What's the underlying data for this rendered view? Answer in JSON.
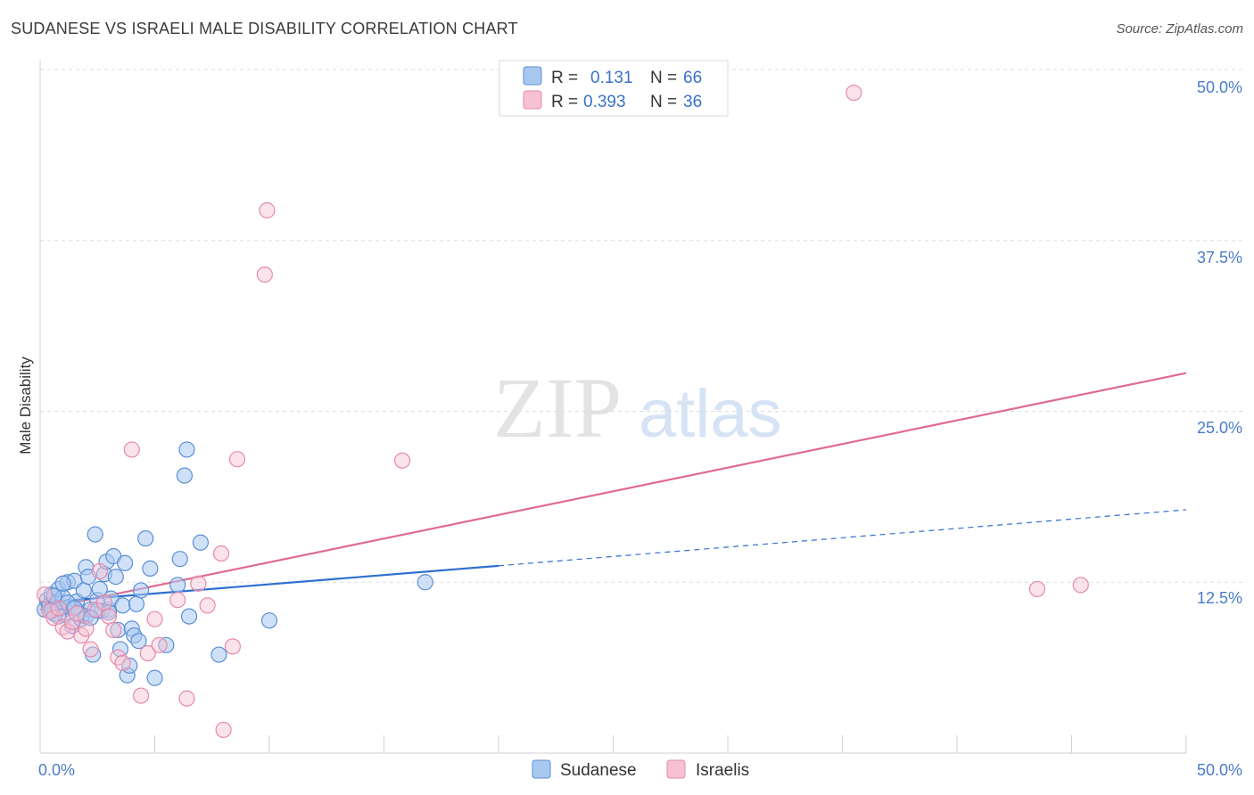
{
  "header": {
    "title": "SUDANESE VS ISRAELI MALE DISABILITY CORRELATION CHART",
    "source": "Source: ZipAtlas.com"
  },
  "watermark": {
    "zip": "ZIP",
    "atlas": "atlas"
  },
  "colors": {
    "sudanese_fill": "#a9c8f0",
    "sudanese_stroke": "#5b8fd6",
    "sudanese_line": "#2f6fcf",
    "israeli_fill": "#f7c1d2",
    "israeli_stroke": "#e58aa8",
    "israeli_line": "#e06a93",
    "tick_text": "#4a7cc9",
    "grid": "#dcdcdc"
  },
  "legend_top": {
    "rows": [
      {
        "series": "Sudanese",
        "r_label": "R =",
        "r_value": "0.131",
        "n_label": "N =",
        "n_value": "66"
      },
      {
        "series": "Israelis",
        "r_label": "R =",
        "r_value": "0.393",
        "n_label": "N =",
        "n_value": "36"
      }
    ]
  },
  "legend_bottom": {
    "items": [
      "Sudanese",
      "Israelis"
    ]
  },
  "chart_data": {
    "type": "scatter",
    "title": "SUDANESE VS ISRAELI MALE DISABILITY CORRELATION CHART",
    "xlabel": "",
    "ylabel": "Male Disability",
    "xlim": [
      0,
      50
    ],
    "ylim": [
      0,
      50
    ],
    "x_tick_labels": [
      "0.0%",
      "50.0%"
    ],
    "y_ticks": [
      12.5,
      25.0,
      37.5,
      50.0
    ],
    "y_tick_labels": [
      "12.5%",
      "25.0%",
      "37.5%",
      "50.0%"
    ],
    "series": [
      {
        "name": "Sudanese",
        "r": 0.131,
        "n": 66,
        "trend": {
          "x0": 0,
          "y0": 11.0,
          "x1": 20,
          "y1": 13.7,
          "dashed_to_x": 50,
          "dashed_to_y": 17.8
        },
        "points": [
          [
            0.2,
            10.5
          ],
          [
            0.3,
            11.2
          ],
          [
            0.4,
            10.8
          ],
          [
            0.5,
            11.6
          ],
          [
            0.6,
            10.2
          ],
          [
            0.7,
            11.0
          ],
          [
            0.8,
            12.0
          ],
          [
            0.9,
            10.6
          ],
          [
            1.0,
            11.4
          ],
          [
            1.1,
            10.1
          ],
          [
            1.2,
            12.5
          ],
          [
            1.3,
            10.7
          ],
          [
            1.4,
            9.3
          ],
          [
            1.5,
            12.6
          ],
          [
            1.6,
            11.1
          ],
          [
            1.7,
            10.3
          ],
          [
            1.8,
            9.8
          ],
          [
            1.9,
            11.9
          ],
          [
            2.0,
            13.6
          ],
          [
            2.1,
            12.9
          ],
          [
            2.2,
            10.5
          ],
          [
            2.3,
            7.2
          ],
          [
            2.4,
            16.0
          ],
          [
            2.5,
            11.2
          ],
          [
            2.6,
            12.0
          ],
          [
            2.7,
            10.4
          ],
          [
            2.8,
            13.1
          ],
          [
            2.9,
            14.0
          ],
          [
            3.0,
            10.5
          ],
          [
            3.1,
            11.3
          ],
          [
            3.2,
            14.4
          ],
          [
            3.3,
            12.9
          ],
          [
            3.4,
            9.0
          ],
          [
            3.5,
            7.6
          ],
          [
            3.6,
            10.8
          ],
          [
            3.7,
            13.9
          ],
          [
            3.8,
            5.7
          ],
          [
            3.9,
            6.4
          ],
          [
            4.0,
            9.1
          ],
          [
            4.1,
            8.6
          ],
          [
            4.2,
            10.9
          ],
          [
            4.3,
            8.2
          ],
          [
            4.4,
            11.9
          ],
          [
            4.6,
            15.7
          ],
          [
            4.8,
            13.5
          ],
          [
            5.0,
            5.5
          ],
          [
            5.5,
            7.9
          ],
          [
            6.0,
            12.3
          ],
          [
            6.1,
            14.2
          ],
          [
            6.3,
            20.3
          ],
          [
            6.4,
            22.2
          ],
          [
            6.5,
            10.0
          ],
          [
            7.0,
            15.4
          ],
          [
            7.8,
            7.2
          ],
          [
            10.0,
            9.7
          ],
          [
            16.8,
            12.5
          ],
          [
            0.8,
            10.0
          ],
          [
            1.2,
            11.0
          ],
          [
            2.0,
            10.0
          ],
          [
            2.5,
            10.4
          ],
          [
            3.0,
            10.3
          ],
          [
            0.5,
            10.4
          ],
          [
            1.5,
            10.6
          ],
          [
            2.2,
            9.9
          ],
          [
            0.6,
            11.5
          ],
          [
            1.0,
            12.4
          ]
        ]
      },
      {
        "name": "Israelis",
        "r": 0.393,
        "n": 36,
        "trend": {
          "x0": 0,
          "y0": 10.5,
          "x1": 50,
          "y1": 27.8
        },
        "points": [
          [
            0.2,
            11.6
          ],
          [
            0.4,
            10.4
          ],
          [
            0.6,
            9.9
          ],
          [
            0.8,
            10.6
          ],
          [
            1.0,
            9.2
          ],
          [
            1.2,
            8.9
          ],
          [
            1.4,
            9.6
          ],
          [
            1.6,
            10.2
          ],
          [
            1.8,
            8.6
          ],
          [
            2.0,
            9.1
          ],
          [
            2.2,
            7.6
          ],
          [
            2.4,
            10.5
          ],
          [
            2.6,
            13.3
          ],
          [
            2.8,
            11.0
          ],
          [
            3.0,
            10.0
          ],
          [
            3.2,
            9.0
          ],
          [
            3.4,
            7.0
          ],
          [
            3.6,
            6.6
          ],
          [
            4.0,
            22.2
          ],
          [
            4.4,
            4.2
          ],
          [
            4.7,
            7.3
          ],
          [
            5.0,
            9.8
          ],
          [
            5.2,
            7.9
          ],
          [
            6.0,
            11.2
          ],
          [
            6.4,
            4.0
          ],
          [
            6.9,
            12.4
          ],
          [
            7.3,
            10.8
          ],
          [
            7.9,
            14.6
          ],
          [
            8.0,
            1.7
          ],
          [
            8.4,
            7.8
          ],
          [
            8.6,
            21.5
          ],
          [
            9.8,
            35.0
          ],
          [
            9.9,
            39.7
          ],
          [
            15.8,
            21.4
          ],
          [
            35.5,
            48.3
          ],
          [
            43.5,
            12.0
          ]
        ],
        "extra_points": [
          [
            45.4,
            12.3
          ]
        ]
      }
    ]
  }
}
